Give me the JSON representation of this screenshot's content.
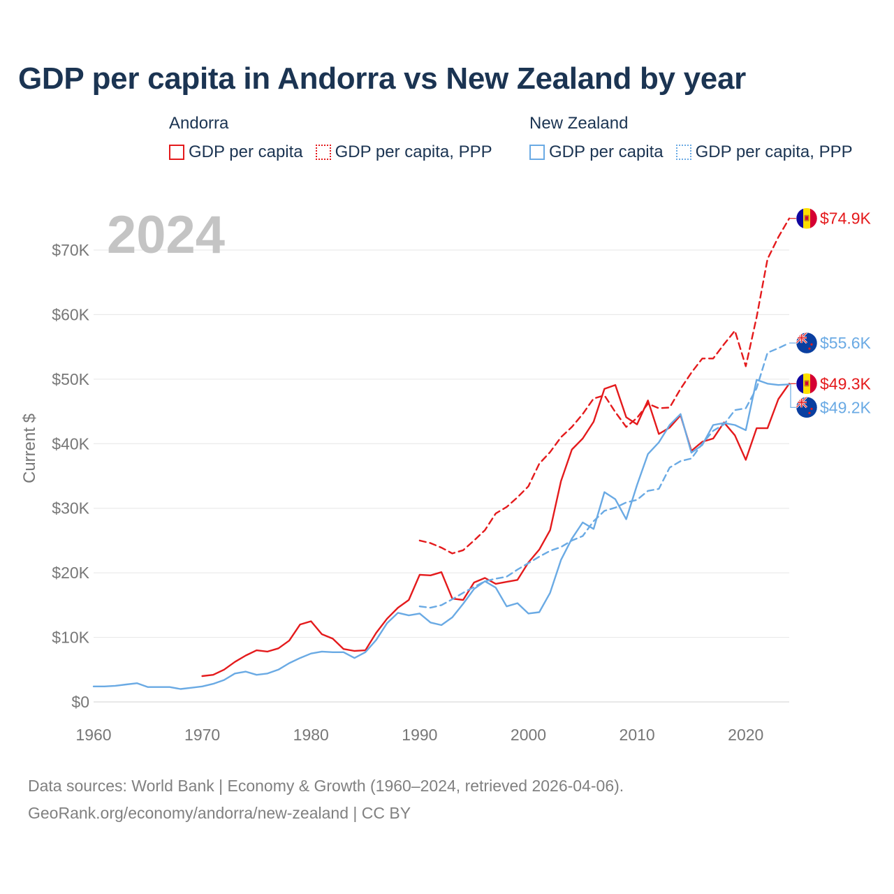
{
  "chart_data": {
    "type": "line",
    "title": "GDP per capita in Andorra vs New Zealand by year",
    "year_overlay": "2024",
    "ylabel": "Current $",
    "xlabel": "",
    "xlim": [
      1960,
      2024
    ],
    "ylim": [
      0,
      75000
    ],
    "x_ticks": [
      1960,
      1970,
      1980,
      1990,
      2000,
      2010,
      2020
    ],
    "x_tick_labels": [
      "1960",
      "1970",
      "1980",
      "1990",
      "2000",
      "2010",
      "2020"
    ],
    "y_ticks": [
      0,
      10000,
      20000,
      30000,
      40000,
      50000,
      60000,
      70000
    ],
    "y_tick_labels": [
      "$0",
      "$10K",
      "$20K",
      "$30K",
      "$40K",
      "$50K",
      "$60K",
      "$70K"
    ],
    "legend": {
      "groups": [
        {
          "name": "Andorra",
          "items": [
            "GDP per capita",
            "GDP per capita, PPP"
          ]
        },
        {
          "name": "New Zealand",
          "items": [
            "GDP per capita",
            "GDP per capita, PPP"
          ]
        }
      ]
    },
    "series": [
      {
        "name": "Andorra GDP per capita",
        "country": "Andorra",
        "color": "#e41a1c",
        "dash": "solid",
        "end_label": "$49.3K",
        "x": [
          1970,
          1971,
          1972,
          1973,
          1974,
          1975,
          1976,
          1977,
          1978,
          1979,
          1980,
          1981,
          1982,
          1983,
          1984,
          1985,
          1986,
          1987,
          1988,
          1989,
          1990,
          1991,
          1992,
          1993,
          1994,
          1995,
          1996,
          1997,
          1998,
          1999,
          2000,
          2001,
          2002,
          2003,
          2004,
          2005,
          2006,
          2007,
          2008,
          2009,
          2010,
          2011,
          2012,
          2013,
          2014,
          2015,
          2016,
          2017,
          2018,
          2019,
          2020,
          2021,
          2022,
          2023,
          2024
        ],
        "values": [
          4000,
          4200,
          5000,
          6200,
          7200,
          8000,
          7800,
          8300,
          9500,
          12000,
          12500,
          10500,
          9800,
          8200,
          7900,
          8000,
          10700,
          12900,
          14600,
          15800,
          19700,
          19600,
          20100,
          16000,
          15800,
          18500,
          19200,
          18300,
          18600,
          18900,
          21600,
          23600,
          26600,
          34200,
          39100,
          40800,
          43400,
          48500,
          49100,
          44100,
          43000,
          46700,
          41500,
          42500,
          44400,
          38900,
          40300,
          40800,
          43300,
          41300,
          37500,
          42400,
          42400,
          46900,
          49300
        ]
      },
      {
        "name": "Andorra GDP per capita, PPP",
        "country": "Andorra",
        "color": "#e41a1c",
        "dash": "dashed",
        "end_label": "$74.9K",
        "x": [
          1990,
          1991,
          1992,
          1993,
          1994,
          1995,
          1996,
          1997,
          1998,
          1999,
          2000,
          2001,
          2002,
          2003,
          2004,
          2005,
          2006,
          2007,
          2008,
          2009,
          2010,
          2011,
          2012,
          2013,
          2014,
          2015,
          2016,
          2017,
          2018,
          2019,
          2020,
          2021,
          2022,
          2023,
          2024
        ],
        "values": [
          25000,
          24600,
          23900,
          23000,
          23500,
          25000,
          26600,
          29200,
          30200,
          31700,
          33400,
          36900,
          38700,
          41000,
          42600,
          44600,
          47000,
          47500,
          44900,
          42600,
          44000,
          46200,
          45500,
          45600,
          48500,
          51000,
          53200,
          53200,
          55400,
          57500,
          52000,
          59600,
          68600,
          72000,
          74900
        ]
      },
      {
        "name": "New Zealand GDP per capita",
        "country": "New Zealand",
        "color": "#6aaae4",
        "dash": "solid",
        "end_label": "$49.2K",
        "x": [
          1960,
          1961,
          1962,
          1963,
          1964,
          1965,
          1966,
          1967,
          1968,
          1969,
          1970,
          1971,
          1972,
          1973,
          1974,
          1975,
          1976,
          1977,
          1978,
          1979,
          1980,
          1981,
          1982,
          1983,
          1984,
          1985,
          1986,
          1987,
          1988,
          1989,
          1990,
          1991,
          1992,
          1993,
          1994,
          1995,
          1996,
          1997,
          1998,
          1999,
          2000,
          2001,
          2002,
          2003,
          2004,
          2005,
          2006,
          2007,
          2008,
          2009,
          2010,
          2011,
          2012,
          2013,
          2014,
          2015,
          2016,
          2017,
          2018,
          2019,
          2020,
          2021,
          2022,
          2023,
          2024
        ],
        "values": [
          2400,
          2400,
          2500,
          2700,
          2900,
          2300,
          2300,
          2300,
          2000,
          2200,
          2400,
          2800,
          3400,
          4400,
          4700,
          4200,
          4400,
          5000,
          6000,
          6800,
          7500,
          7800,
          7700,
          7700,
          6800,
          7700,
          9600,
          12200,
          13800,
          13400,
          13700,
          12300,
          11900,
          13100,
          15200,
          17500,
          18700,
          17700,
          14800,
          15300,
          13700,
          13900,
          16900,
          22000,
          25300,
          27800,
          26800,
          32500,
          31400,
          28300,
          33600,
          38400,
          40200,
          42900,
          44600,
          38600,
          39800,
          42900,
          43200,
          42900,
          42100,
          49900,
          49300,
          49100,
          49200
        ]
      },
      {
        "name": "New Zealand GDP per capita, PPP",
        "country": "New Zealand",
        "color": "#6aaae4",
        "dash": "dashed",
        "end_label": "$55.6K",
        "x": [
          1990,
          1991,
          1992,
          1993,
          1994,
          1995,
          1996,
          1997,
          1998,
          1999,
          2000,
          2001,
          2002,
          2003,
          2004,
          2005,
          2006,
          2007,
          2008,
          2009,
          2010,
          2011,
          2012,
          2013,
          2014,
          2015,
          2016,
          2017,
          2018,
          2019,
          2020,
          2021,
          2022,
          2023,
          2024
        ],
        "values": [
          14800,
          14600,
          15000,
          15900,
          16900,
          17800,
          18700,
          19100,
          19400,
          20500,
          21500,
          22500,
          23400,
          24000,
          25000,
          25700,
          28000,
          29600,
          30100,
          30900,
          31300,
          32700,
          33000,
          36300,
          37300,
          37700,
          40000,
          42000,
          43000,
          45200,
          45500,
          48600,
          54100,
          54800,
          55600
        ]
      }
    ]
  },
  "legend_labels": {
    "andorra": "Andorra",
    "new_zealand": "New Zealand",
    "gdp": "GDP per capita",
    "gdp_ppp": "GDP per capita, PPP"
  },
  "source": {
    "line1": "Data sources: World Bank | Economy & Growth (1960–2024, retrieved 2026-04-06).",
    "line2": "GeoRank.org/economy/andorra/new-zealand | CC BY"
  },
  "flags": {
    "andorra": "andorra-flag-icon",
    "new_zealand": "new-zealand-flag-icon"
  }
}
